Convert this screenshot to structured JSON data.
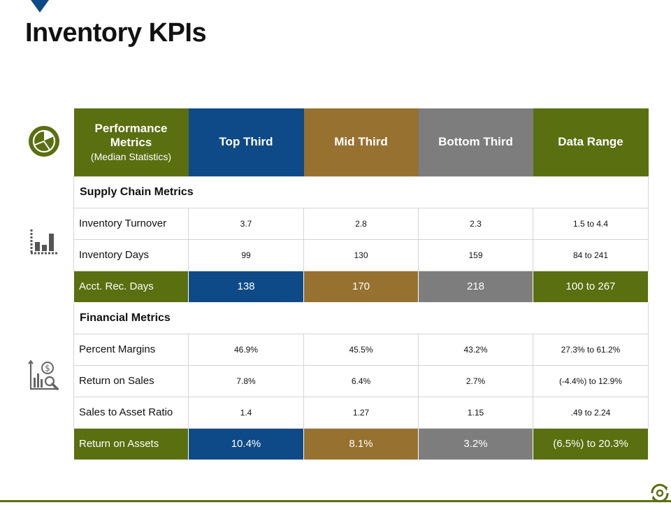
{
  "title": "Inventory KPIs",
  "colors": {
    "green": "#5a6f10",
    "blue": "#0e4a87",
    "brown": "#977130",
    "gray": "#7d7d7d"
  },
  "icons": [
    "pie-chart-icon",
    "bar-chart-icon",
    "dollar-magnifier-chart-icon",
    "gear-arrows-icon"
  ],
  "table": {
    "header": {
      "metrics_label": "Performance Metrics",
      "metrics_sub": "(Median Statistics)",
      "top": "Top Third",
      "mid": "Mid Third",
      "bottom": "Bottom Third",
      "range": "Data Range"
    },
    "sections": [
      {
        "title": "Supply Chain Metrics",
        "rows": [
          {
            "label": "Inventory  Turnover",
            "top": "3.7",
            "mid": "2.8",
            "bottom": "2.3",
            "range": "1.5 to 4.4"
          },
          {
            "label": "Inventory  Days",
            "top": "99",
            "mid": "130",
            "bottom": "159",
            "range": "84 to 241"
          },
          {
            "label": "Acct. Rec. Days",
            "top": "138",
            "mid": "170",
            "bottom": "218",
            "range": "100 to 267"
          }
        ]
      },
      {
        "title": "Financial Metrics",
        "rows": [
          {
            "label": "Percent Margins",
            "top": "46.9%",
            "mid": "45.5%",
            "bottom": "43.2%",
            "range": "27.3% to 61.2%"
          },
          {
            "label": "Return  on Sales",
            "top": "7.8%",
            "mid": "6.4%",
            "bottom": "2.7%",
            "range": "(-4.4%) to 12.9%"
          },
          {
            "label": "Sales to Asset Ratio",
            "top": "1.4",
            "mid": "1.27",
            "bottom": "1.15",
            "range": ".49 to 2.24"
          },
          {
            "label": "Return  on Assets",
            "top": "10.4%",
            "mid": "8.1%",
            "bottom": "3.2%",
            "range": "(6.5%) to 20.3%"
          }
        ]
      }
    ]
  }
}
